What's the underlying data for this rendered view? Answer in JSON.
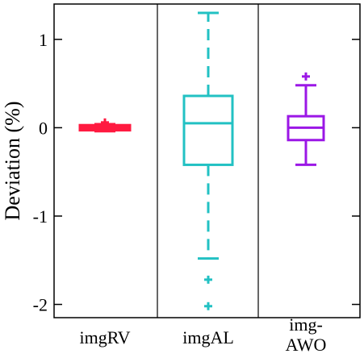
{
  "chart_data": {
    "type": "box",
    "title": "",
    "xlabel": "",
    "ylabel": "Deviation (%)",
    "ylim": [
      -2.15,
      1.4
    ],
    "yticks": [
      1,
      0,
      -1,
      -2
    ],
    "ytick_labels": [
      "1",
      "0",
      "-1",
      "-2"
    ],
    "grid": false,
    "categories": [
      {
        "lines": [
          "imgRV"
        ]
      },
      {
        "lines": [
          "imgAL"
        ]
      },
      {
        "lines": [
          "img-",
          "AWO"
        ]
      }
    ],
    "series": [
      {
        "category": "imgRV",
        "color": "#ff1a40",
        "whisker_low": -0.04,
        "q1": -0.02,
        "median": 0.0,
        "q3": 0.02,
        "whisker_high": 0.04,
        "outliers": [
          0.06
        ]
      },
      {
        "category": "imgAL",
        "color": "#22c1c3",
        "whisker_low": -1.48,
        "q1": -0.42,
        "median": 0.05,
        "q3": 0.36,
        "whisker_high": 1.3,
        "outliers": [
          -1.72,
          -2.02
        ]
      },
      {
        "category": "img-AWO",
        "color": "#9b17e6",
        "whisker_low": -0.42,
        "q1": -0.14,
        "median": 0.0,
        "q3": 0.13,
        "whisker_high": 0.48,
        "outliers": [
          0.58
        ]
      }
    ]
  }
}
